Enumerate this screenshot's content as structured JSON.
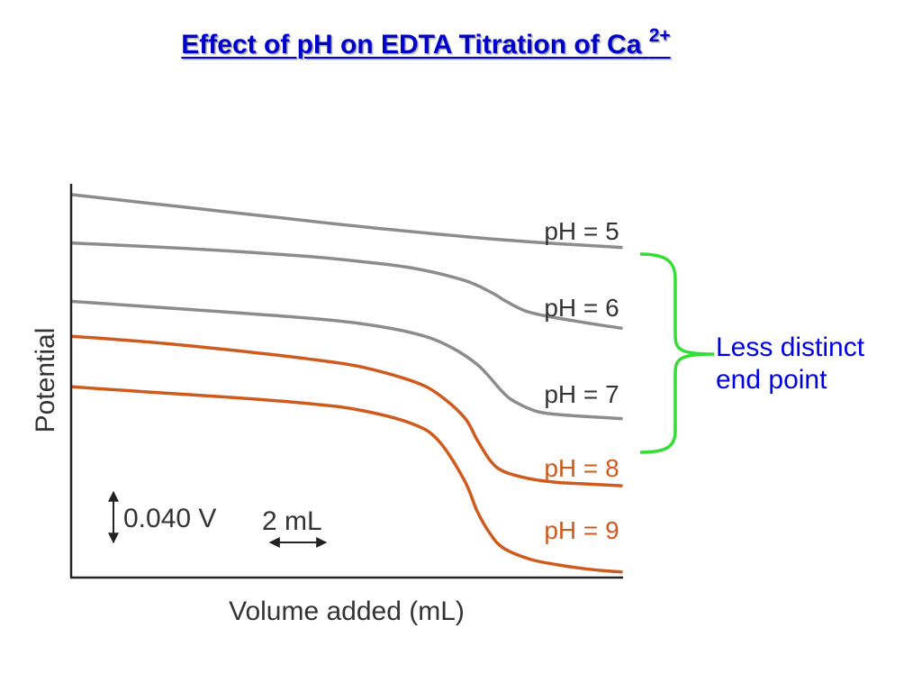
{
  "slide": {
    "title": "Effect of pH on EDTA Titration of Ca",
    "title_superscript": "2+"
  },
  "chart_data": {
    "type": "line",
    "xlabel": "Volume added (mL)",
    "ylabel": "Potential",
    "grid": false,
    "ticks": "none",
    "scale_bars": {
      "y": {
        "label": "0.040 V",
        "value": 0.04,
        "unit": "V"
      },
      "x": {
        "label": "2 mL",
        "value": 2,
        "unit": "mL"
      }
    },
    "colors": {
      "low_ph": "#8c8c8c",
      "high_ph": "#cf5a1e"
    },
    "series": [
      {
        "name": "pH = 5",
        "color": "#8c8c8c",
        "points": [
          [
            0,
            97.5
          ],
          [
            4,
            96
          ],
          [
            8,
            94.5
          ],
          [
            12,
            93
          ],
          [
            16,
            91.5
          ],
          [
            20,
            90
          ],
          [
            24,
            88.6
          ],
          [
            28,
            87.3
          ],
          [
            32,
            86.1
          ],
          [
            36,
            85.1
          ],
          [
            40,
            84.3
          ],
          [
            42,
            83.9
          ]
        ]
      },
      {
        "name": "pH = 6",
        "color": "#8c8c8c",
        "points": [
          [
            0,
            85
          ],
          [
            6,
            84.1
          ],
          [
            12,
            83
          ],
          [
            18,
            81.6
          ],
          [
            22,
            80.3
          ],
          [
            26,
            78.6
          ],
          [
            30,
            75.4
          ],
          [
            32,
            72.4
          ],
          [
            33.2,
            70
          ],
          [
            34.6,
            67.6
          ],
          [
            36,
            66.4
          ],
          [
            38,
            65.2
          ],
          [
            40,
            64.1
          ],
          [
            42,
            63.1
          ]
        ]
      },
      {
        "name": "pH = 7",
        "color": "#8c8c8c",
        "points": [
          [
            0,
            70
          ],
          [
            6,
            68.6
          ],
          [
            12,
            67.2
          ],
          [
            18,
            65.7
          ],
          [
            22,
            64.3
          ],
          [
            26,
            61.9
          ],
          [
            28.5,
            59
          ],
          [
            31,
            53.7
          ],
          [
            33,
            46.4
          ],
          [
            34,
            43.9
          ],
          [
            35.5,
            41.7
          ],
          [
            37,
            40.9
          ],
          [
            39,
            40.4
          ],
          [
            42,
            39.8
          ]
        ]
      },
      {
        "name": "pH = 8",
        "color": "#cf5a1e",
        "points": [
          [
            0,
            61
          ],
          [
            6,
            59.5
          ],
          [
            12,
            57.5
          ],
          [
            18,
            55.2
          ],
          [
            22,
            53.2
          ],
          [
            26,
            49.5
          ],
          [
            28,
            46.1
          ],
          [
            30,
            40.1
          ],
          [
            31,
            34.2
          ],
          [
            32,
            28.9
          ],
          [
            33,
            26.2
          ],
          [
            35,
            24.3
          ],
          [
            37,
            23.4
          ],
          [
            39,
            23
          ],
          [
            42,
            22.5
          ]
        ]
      },
      {
        "name": "pH = 9",
        "color": "#cf5a1e",
        "points": [
          [
            0,
            48
          ],
          [
            6,
            46.6
          ],
          [
            12,
            45.3
          ],
          [
            18,
            43.7
          ],
          [
            22,
            42
          ],
          [
            26,
            38.5
          ],
          [
            28,
            34.2
          ],
          [
            30,
            23.9
          ],
          [
            31,
            15.8
          ],
          [
            32,
            10
          ],
          [
            33,
            6.4
          ],
          [
            35,
            3.6
          ],
          [
            37,
            2.2
          ],
          [
            39,
            1.2
          ],
          [
            41,
            0.5
          ],
          [
            42,
            0.3
          ]
        ]
      }
    ]
  },
  "annotation": {
    "line1": "Less distinct",
    "line2": "end point",
    "brace_color": "#33dd33",
    "text_color": "#0000e6"
  }
}
